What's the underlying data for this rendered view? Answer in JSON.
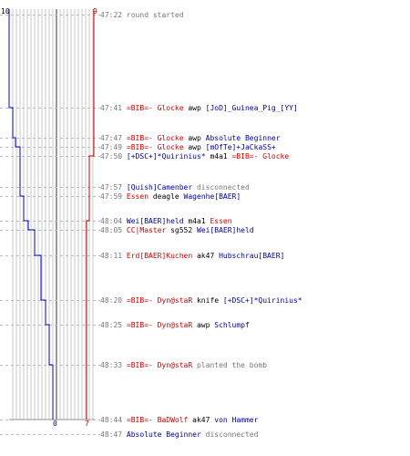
{
  "colors": {
    "blue": "#0000cc",
    "red": "#cc0000",
    "dark": "#333333",
    "grid": "#bbbbbb",
    "time": "#777777"
  },
  "scores": {
    "blue_start": "10",
    "red_start": "9",
    "blue_end": "0",
    "red_end": "7"
  },
  "events": [
    {
      "time": "47:22",
      "parts": [
        {
          "text": "round started",
          "color": "grey"
        }
      ]
    },
    {
      "time": "47:41",
      "parts": [
        {
          "text": "=BIB=- Glocke",
          "color": "red"
        },
        {
          "text": " awp ",
          "color": "blk"
        },
        {
          "text": "[JoD]_Guinea_Pig_[YY]",
          "color": "blue"
        }
      ]
    },
    {
      "time": "47:47",
      "parts": [
        {
          "text": "=BIB=- Glocke",
          "color": "red"
        },
        {
          "text": " awp ",
          "color": "blk"
        },
        {
          "text": "Absolute Beginner",
          "color": "blue"
        }
      ]
    },
    {
      "time": "47:49",
      "parts": [
        {
          "text": "=BIB=- Glocke",
          "color": "red"
        },
        {
          "text": " awp ",
          "color": "blk"
        },
        {
          "text": "[mOfTe]+JaCkaSS+",
          "color": "blue"
        }
      ]
    },
    {
      "time": "47:50",
      "parts": [
        {
          "text": "[+DSC+]*Quirinius*",
          "color": "blue"
        },
        {
          "text": " m4a1 ",
          "color": "blk"
        },
        {
          "text": "=BIB=- Glocke",
          "color": "red"
        }
      ]
    },
    {
      "time": "47:57",
      "parts": [
        {
          "text": "[Quish]Camenber",
          "color": "blue"
        },
        {
          "text": " disconnected",
          "color": "grey"
        }
      ]
    },
    {
      "time": "47:59",
      "parts": [
        {
          "text": "Essen",
          "color": "red"
        },
        {
          "text": " deagle ",
          "color": "blk"
        },
        {
          "text": "Wagenhe[BAER]",
          "color": "blue"
        }
      ]
    },
    {
      "time": "48:04",
      "parts": [
        {
          "text": "Wei[BAER]held",
          "color": "blue"
        },
        {
          "text": " m4a1 ",
          "color": "blk"
        },
        {
          "text": "Essen",
          "color": "red"
        }
      ]
    },
    {
      "time": "48:05",
      "parts": [
        {
          "text": "CC|Master",
          "color": "red"
        },
        {
          "text": " sg552 ",
          "color": "blk"
        },
        {
          "text": "Wei[BAER]held",
          "color": "blue"
        }
      ]
    },
    {
      "time": "48:11",
      "parts": [
        {
          "text": "Erd[BAER]Kuchen",
          "color": "red"
        },
        {
          "text": " ak47 ",
          "color": "blk"
        },
        {
          "text": "Hubschrau[BAER]",
          "color": "blue"
        }
      ]
    },
    {
      "time": "48:20",
      "parts": [
        {
          "text": "=BIB=- Dyn@staR",
          "color": "red"
        },
        {
          "text": " knife ",
          "color": "blk"
        },
        {
          "text": "[+DSC+]*Quirinius*",
          "color": "blue"
        }
      ]
    },
    {
      "time": "48:25",
      "parts": [
        {
          "text": "=BIB=- Dyn@staR",
          "color": "red"
        },
        {
          "text": " awp ",
          "color": "blk"
        },
        {
          "text": "Schlumpf",
          "color": "blue"
        }
      ]
    },
    {
      "time": "48:33",
      "parts": [
        {
          "text": "=BIB=- Dyn@staR",
          "color": "red"
        },
        {
          "text": " planted the bomb",
          "color": "grey"
        }
      ]
    },
    {
      "time": "48:44",
      "parts": [
        {
          "text": "=BIB=- BaDWolf",
          "color": "red"
        },
        {
          "text": " ak47 ",
          "color": "blk"
        },
        {
          "text": "von Hammer",
          "color": "blue"
        }
      ]
    },
    {
      "time": "48:47",
      "parts": [
        {
          "text": "Absolute Beginner",
          "color": "blue"
        },
        {
          "text": " disconnected",
          "color": "grey"
        }
      ]
    }
  ]
}
